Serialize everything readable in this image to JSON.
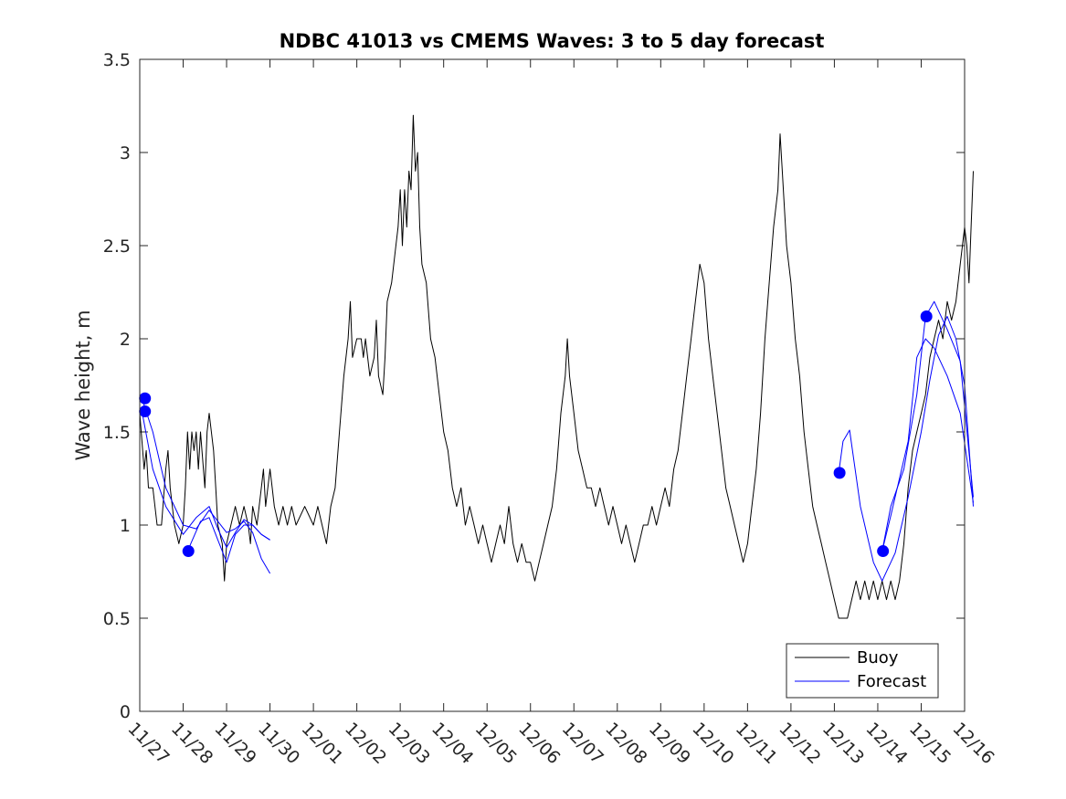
{
  "chart_data": {
    "type": "line",
    "title": "NDBC 41013 vs CMEMS Waves: 3 to 5 day forecast",
    "xlabel": "",
    "ylabel": "Wave height, m",
    "xlim": [
      0,
      19
    ],
    "ylim": [
      0,
      3.5
    ],
    "x_tick_labels": [
      "11/27",
      "11/28",
      "11/29",
      "11/30",
      "12/01",
      "12/02",
      "12/03",
      "12/04",
      "12/05",
      "12/06",
      "12/07",
      "12/08",
      "12/09",
      "12/10",
      "12/11",
      "12/12",
      "12/13",
      "12/14",
      "12/15",
      "12/16"
    ],
    "y_ticks": [
      0,
      0.5,
      1,
      1.5,
      2,
      2.5,
      3,
      3.5
    ],
    "y_tick_labels": [
      "0",
      "0.5",
      "1",
      "1.5",
      "2",
      "2.5",
      "3",
      "3.5"
    ],
    "grid": false,
    "legend_position": "bottom-right",
    "series": [
      {
        "name": "Buoy",
        "color": "#000000",
        "points": [
          [
            0.0,
            1.6
          ],
          [
            0.1,
            1.3
          ],
          [
            0.15,
            1.4
          ],
          [
            0.2,
            1.2
          ],
          [
            0.3,
            1.2
          ],
          [
            0.4,
            1.0
          ],
          [
            0.5,
            1.0
          ],
          [
            0.6,
            1.3
          ],
          [
            0.65,
            1.4
          ],
          [
            0.7,
            1.2
          ],
          [
            0.8,
            1.0
          ],
          [
            0.9,
            0.9
          ],
          [
            1.0,
            1.0
          ],
          [
            1.05,
            1.2
          ],
          [
            1.1,
            1.5
          ],
          [
            1.15,
            1.3
          ],
          [
            1.2,
            1.5
          ],
          [
            1.25,
            1.4
          ],
          [
            1.3,
            1.5
          ],
          [
            1.35,
            1.3
          ],
          [
            1.4,
            1.5
          ],
          [
            1.5,
            1.2
          ],
          [
            1.55,
            1.5
          ],
          [
            1.6,
            1.6
          ],
          [
            1.65,
            1.5
          ],
          [
            1.7,
            1.4
          ],
          [
            1.75,
            1.2
          ],
          [
            1.8,
            1.0
          ],
          [
            1.9,
            0.9
          ],
          [
            1.95,
            0.7
          ],
          [
            2.0,
            0.9
          ],
          [
            2.1,
            1.0
          ],
          [
            2.2,
            1.1
          ],
          [
            2.3,
            1.0
          ],
          [
            2.4,
            1.1
          ],
          [
            2.5,
            1.0
          ],
          [
            2.55,
            0.9
          ],
          [
            2.6,
            1.1
          ],
          [
            2.7,
            1.0
          ],
          [
            2.8,
            1.2
          ],
          [
            2.85,
            1.3
          ],
          [
            2.9,
            1.1
          ],
          [
            3.0,
            1.3
          ],
          [
            3.05,
            1.2
          ],
          [
            3.1,
            1.1
          ],
          [
            3.2,
            1.0
          ],
          [
            3.3,
            1.1
          ],
          [
            3.4,
            1.0
          ],
          [
            3.5,
            1.1
          ],
          [
            3.6,
            1.0
          ],
          [
            3.8,
            1.1
          ],
          [
            4.0,
            1.0
          ],
          [
            4.1,
            1.1
          ],
          [
            4.2,
            1.0
          ],
          [
            4.3,
            0.9
          ],
          [
            4.4,
            1.1
          ],
          [
            4.5,
            1.2
          ],
          [
            4.6,
            1.5
          ],
          [
            4.7,
            1.8
          ],
          [
            4.8,
            2.0
          ],
          [
            4.85,
            2.2
          ],
          [
            4.9,
            1.9
          ],
          [
            5.0,
            2.0
          ],
          [
            5.1,
            2.0
          ],
          [
            5.15,
            1.9
          ],
          [
            5.2,
            2.0
          ],
          [
            5.3,
            1.8
          ],
          [
            5.4,
            1.9
          ],
          [
            5.45,
            2.1
          ],
          [
            5.5,
            1.8
          ],
          [
            5.6,
            1.7
          ],
          [
            5.65,
            1.9
          ],
          [
            5.7,
            2.2
          ],
          [
            5.8,
            2.3
          ],
          [
            5.9,
            2.5
          ],
          [
            5.95,
            2.6
          ],
          [
            6.0,
            2.8
          ],
          [
            6.05,
            2.5
          ],
          [
            6.1,
            2.8
          ],
          [
            6.15,
            2.6
          ],
          [
            6.2,
            2.9
          ],
          [
            6.25,
            2.8
          ],
          [
            6.3,
            3.2
          ],
          [
            6.35,
            2.9
          ],
          [
            6.4,
            3.0
          ],
          [
            6.45,
            2.6
          ],
          [
            6.5,
            2.4
          ],
          [
            6.6,
            2.3
          ],
          [
            6.7,
            2.0
          ],
          [
            6.8,
            1.9
          ],
          [
            6.9,
            1.7
          ],
          [
            7.0,
            1.5
          ],
          [
            7.1,
            1.4
          ],
          [
            7.2,
            1.2
          ],
          [
            7.3,
            1.1
          ],
          [
            7.4,
            1.2
          ],
          [
            7.5,
            1.0
          ],
          [
            7.6,
            1.1
          ],
          [
            7.7,
            1.0
          ],
          [
            7.8,
            0.9
          ],
          [
            7.9,
            1.0
          ],
          [
            8.0,
            0.9
          ],
          [
            8.1,
            0.8
          ],
          [
            8.2,
            0.9
          ],
          [
            8.3,
            1.0
          ],
          [
            8.4,
            0.9
          ],
          [
            8.5,
            1.1
          ],
          [
            8.6,
            0.9
          ],
          [
            8.7,
            0.8
          ],
          [
            8.8,
            0.9
          ],
          [
            8.9,
            0.8
          ],
          [
            9.0,
            0.8
          ],
          [
            9.1,
            0.7
          ],
          [
            9.2,
            0.8
          ],
          [
            9.3,
            0.9
          ],
          [
            9.4,
            1.0
          ],
          [
            9.5,
            1.1
          ],
          [
            9.6,
            1.3
          ],
          [
            9.7,
            1.6
          ],
          [
            9.8,
            1.8
          ],
          [
            9.85,
            2.0
          ],
          [
            9.9,
            1.8
          ],
          [
            10.0,
            1.6
          ],
          [
            10.1,
            1.4
          ],
          [
            10.2,
            1.3
          ],
          [
            10.3,
            1.2
          ],
          [
            10.4,
            1.2
          ],
          [
            10.5,
            1.1
          ],
          [
            10.6,
            1.2
          ],
          [
            10.7,
            1.1
          ],
          [
            10.8,
            1.0
          ],
          [
            10.9,
            1.1
          ],
          [
            11.0,
            1.0
          ],
          [
            11.1,
            0.9
          ],
          [
            11.2,
            1.0
          ],
          [
            11.3,
            0.9
          ],
          [
            11.4,
            0.8
          ],
          [
            11.5,
            0.9
          ],
          [
            11.6,
            1.0
          ],
          [
            11.7,
            1.0
          ],
          [
            11.8,
            1.1
          ],
          [
            11.9,
            1.0
          ],
          [
            12.0,
            1.1
          ],
          [
            12.1,
            1.2
          ],
          [
            12.2,
            1.1
          ],
          [
            12.3,
            1.3
          ],
          [
            12.4,
            1.4
          ],
          [
            12.5,
            1.6
          ],
          [
            12.6,
            1.8
          ],
          [
            12.7,
            2.0
          ],
          [
            12.8,
            2.2
          ],
          [
            12.85,
            2.3
          ],
          [
            12.9,
            2.4
          ],
          [
            13.0,
            2.3
          ],
          [
            13.1,
            2.0
          ],
          [
            13.2,
            1.8
          ],
          [
            13.3,
            1.6
          ],
          [
            13.4,
            1.4
          ],
          [
            13.5,
            1.2
          ],
          [
            13.6,
            1.1
          ],
          [
            13.7,
            1.0
          ],
          [
            13.8,
            0.9
          ],
          [
            13.9,
            0.8
          ],
          [
            14.0,
            0.9
          ],
          [
            14.1,
            1.1
          ],
          [
            14.2,
            1.3
          ],
          [
            14.3,
            1.6
          ],
          [
            14.4,
            2.0
          ],
          [
            14.5,
            2.3
          ],
          [
            14.6,
            2.6
          ],
          [
            14.7,
            2.8
          ],
          [
            14.75,
            3.1
          ],
          [
            14.8,
            2.9
          ],
          [
            14.9,
            2.5
          ],
          [
            15.0,
            2.3
          ],
          [
            15.1,
            2.0
          ],
          [
            15.2,
            1.8
          ],
          [
            15.3,
            1.5
          ],
          [
            15.4,
            1.3
          ],
          [
            15.5,
            1.1
          ],
          [
            15.6,
            1.0
          ],
          [
            15.7,
            0.9
          ],
          [
            15.8,
            0.8
          ],
          [
            15.9,
            0.7
          ],
          [
            16.0,
            0.6
          ],
          [
            16.1,
            0.5
          ],
          [
            16.3,
            0.5
          ],
          [
            16.4,
            0.6
          ],
          [
            16.5,
            0.7
          ],
          [
            16.6,
            0.6
          ],
          [
            16.7,
            0.7
          ],
          [
            16.8,
            0.6
          ],
          [
            16.9,
            0.7
          ],
          [
            17.0,
            0.6
          ],
          [
            17.1,
            0.7
          ],
          [
            17.2,
            0.6
          ],
          [
            17.3,
            0.7
          ],
          [
            17.4,
            0.6
          ],
          [
            17.5,
            0.7
          ],
          [
            17.6,
            0.9
          ],
          [
            17.7,
            1.2
          ],
          [
            17.8,
            1.4
          ],
          [
            17.9,
            1.5
          ],
          [
            18.0,
            1.6
          ],
          [
            18.1,
            1.7
          ],
          [
            18.2,
            1.9
          ],
          [
            18.3,
            2.0
          ],
          [
            18.4,
            2.1
          ],
          [
            18.5,
            2.0
          ],
          [
            18.6,
            2.2
          ],
          [
            18.7,
            2.1
          ],
          [
            18.8,
            2.2
          ],
          [
            18.9,
            2.4
          ],
          [
            19.0,
            2.6
          ],
          [
            19.05,
            2.5
          ],
          [
            19.1,
            2.3
          ],
          [
            19.15,
            2.6
          ],
          [
            19.2,
            2.9
          ]
        ]
      },
      {
        "name": "Forecast",
        "color": "#0000ff",
        "segments": [
          [
            [
              0.05,
              1.68
            ],
            [
              0.3,
              1.5
            ],
            [
              0.6,
              1.2
            ],
            [
              1.0,
              1.0
            ],
            [
              1.3,
              0.98
            ],
            [
              1.6,
              1.08
            ],
            [
              1.8,
              1.02
            ],
            [
              2.0,
              0.96
            ],
            [
              2.2,
              0.98
            ],
            [
              2.4,
              1.02
            ],
            [
              2.6,
              0.96
            ],
            [
              2.8,
              0.82
            ],
            [
              3.0,
              0.74
            ]
          ],
          [
            [
              0.05,
              1.61
            ],
            [
              0.3,
              1.3
            ],
            [
              0.6,
              1.1
            ],
            [
              1.0,
              0.95
            ],
            [
              1.3,
              1.04
            ],
            [
              1.6,
              1.1
            ],
            [
              1.8,
              0.98
            ],
            [
              2.0,
              0.88
            ],
            [
              2.2,
              0.96
            ],
            [
              2.4,
              1.03
            ],
            [
              2.6,
              1.0
            ],
            [
              2.8,
              0.95
            ],
            [
              3.0,
              0.92
            ]
          ],
          [
            [
              1.1,
              0.86
            ],
            [
              1.4,
              1.02
            ],
            [
              1.6,
              1.04
            ],
            [
              1.8,
              0.92
            ],
            [
              2.0,
              0.8
            ],
            [
              2.2,
              0.95
            ],
            [
              2.4,
              1.0
            ],
            [
              2.6,
              1.0
            ],
            [
              2.8,
              0.95
            ],
            [
              3.0,
              0.92
            ]
          ],
          [
            [
              16.1,
              1.28
            ],
            [
              16.2,
              1.45
            ],
            [
              16.35,
              1.51
            ],
            [
              16.6,
              1.1
            ],
            [
              16.9,
              0.8
            ],
            [
              17.1,
              0.7
            ],
            [
              17.4,
              0.85
            ],
            [
              17.7,
              1.15
            ],
            [
              18.0,
              1.5
            ],
            [
              18.2,
              1.78
            ],
            [
              18.4,
              2.02
            ],
            [
              18.6,
              2.12
            ],
            [
              18.8,
              2.0
            ],
            [
              19.0,
              1.75
            ],
            [
              19.2,
              1.1
            ]
          ],
          [
            [
              17.1,
              0.86
            ],
            [
              17.3,
              1.1
            ],
            [
              17.6,
              1.3
            ],
            [
              17.9,
              1.7
            ],
            [
              18.1,
              2.12
            ],
            [
              18.3,
              2.2
            ],
            [
              18.6,
              2.05
            ],
            [
              18.9,
              1.88
            ],
            [
              19.2,
              1.15
            ]
          ],
          [
            [
              17.1,
              0.86
            ],
            [
              17.3,
              1.05
            ],
            [
              17.5,
              1.25
            ],
            [
              17.7,
              1.45
            ],
            [
              17.9,
              1.9
            ],
            [
              18.1,
              2.0
            ],
            [
              18.3,
              1.95
            ],
            [
              18.6,
              1.8
            ],
            [
              18.9,
              1.6
            ],
            [
              19.2,
              1.12
            ]
          ]
        ],
        "markers": [
          [
            0.12,
            1.68
          ],
          [
            0.12,
            1.61
          ],
          [
            1.12,
            0.86
          ],
          [
            16.12,
            1.28
          ],
          [
            17.12,
            0.86
          ],
          [
            18.12,
            2.12
          ]
        ]
      }
    ],
    "legend": [
      {
        "label": "Buoy",
        "color": "#000000"
      },
      {
        "label": "Forecast",
        "color": "#0000ff"
      }
    ]
  }
}
